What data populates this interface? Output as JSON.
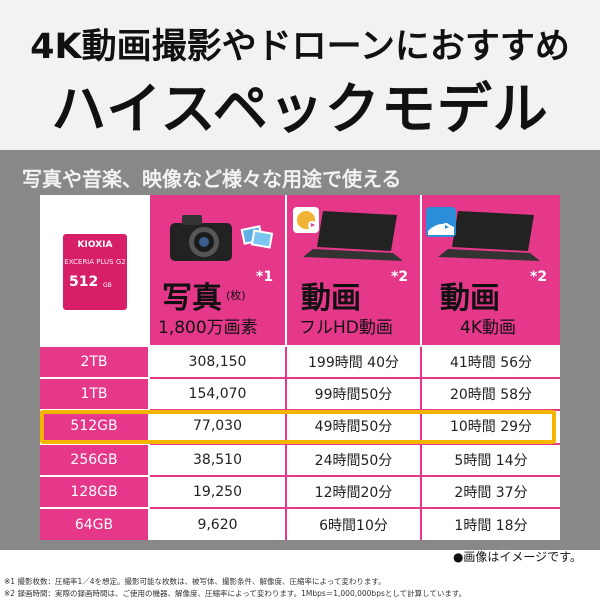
{
  "header": {
    "line1": "4K動画撮影やドローンにおすすめ",
    "line2": "ハイスペックモデル"
  },
  "subtitle": "写真や音楽、映像など様々な用途で使える",
  "card": {
    "brand": "KIOXIA",
    "series": "EXCERIA PLUS G2",
    "capacity": "512",
    "unit": "GB"
  },
  "columns": [
    {
      "main": "写真",
      "note": "(枚)",
      "sup": "*1",
      "sub": "1,800万画素"
    },
    {
      "main": "動画",
      "note": "",
      "sup": "*2",
      "sub": "フルHD動画"
    },
    {
      "main": "動画",
      "note": "",
      "sup": "*2",
      "sub": "4K動画"
    }
  ],
  "rows": [
    {
      "capacity": "2TB",
      "photos": "308,150",
      "fullhd": "199時間 40分",
      "uhd4k": "41時間 56分"
    },
    {
      "capacity": "1TB",
      "photos": "154,070",
      "fullhd": "99時間50分",
      "uhd4k": "20時間 58分"
    },
    {
      "capacity": "512GB",
      "photos": "77,030",
      "fullhd": "49時間50分",
      "uhd4k": "10時間 29分"
    },
    {
      "capacity": "256GB",
      "photos": "38,510",
      "fullhd": "24時間50分",
      "uhd4k": "5時間 14分"
    },
    {
      "capacity": "128GB",
      "photos": "19,250",
      "fullhd": "12時間20分",
      "uhd4k": "2時間 37分"
    },
    {
      "capacity": "64GB",
      "photos": "9,620",
      "fullhd": "6時間10分",
      "uhd4k": "1時間 18分"
    }
  ],
  "image_note": "●画像はイメージです。",
  "footnotes": [
    "※1 撮影枚数：圧縮率1／4を想定。撮影可能な枚数は、被写体、撮影条件、解像度、圧縮率によって変わります。",
    "※2 録画時間：実際の録画時間は、ご使用の機器、解像度、圧縮率によって変わります。1Mbps＝1,000,000bpsとして計算しています。"
  ],
  "colors": {
    "pink": "#e5388b",
    "highlight": "#f5b400",
    "gray": "#888888"
  },
  "icons": [
    "camera-icon",
    "photo-prints-icon",
    "laptop-dance-video-icon",
    "laptop-surf-video-icon"
  ]
}
